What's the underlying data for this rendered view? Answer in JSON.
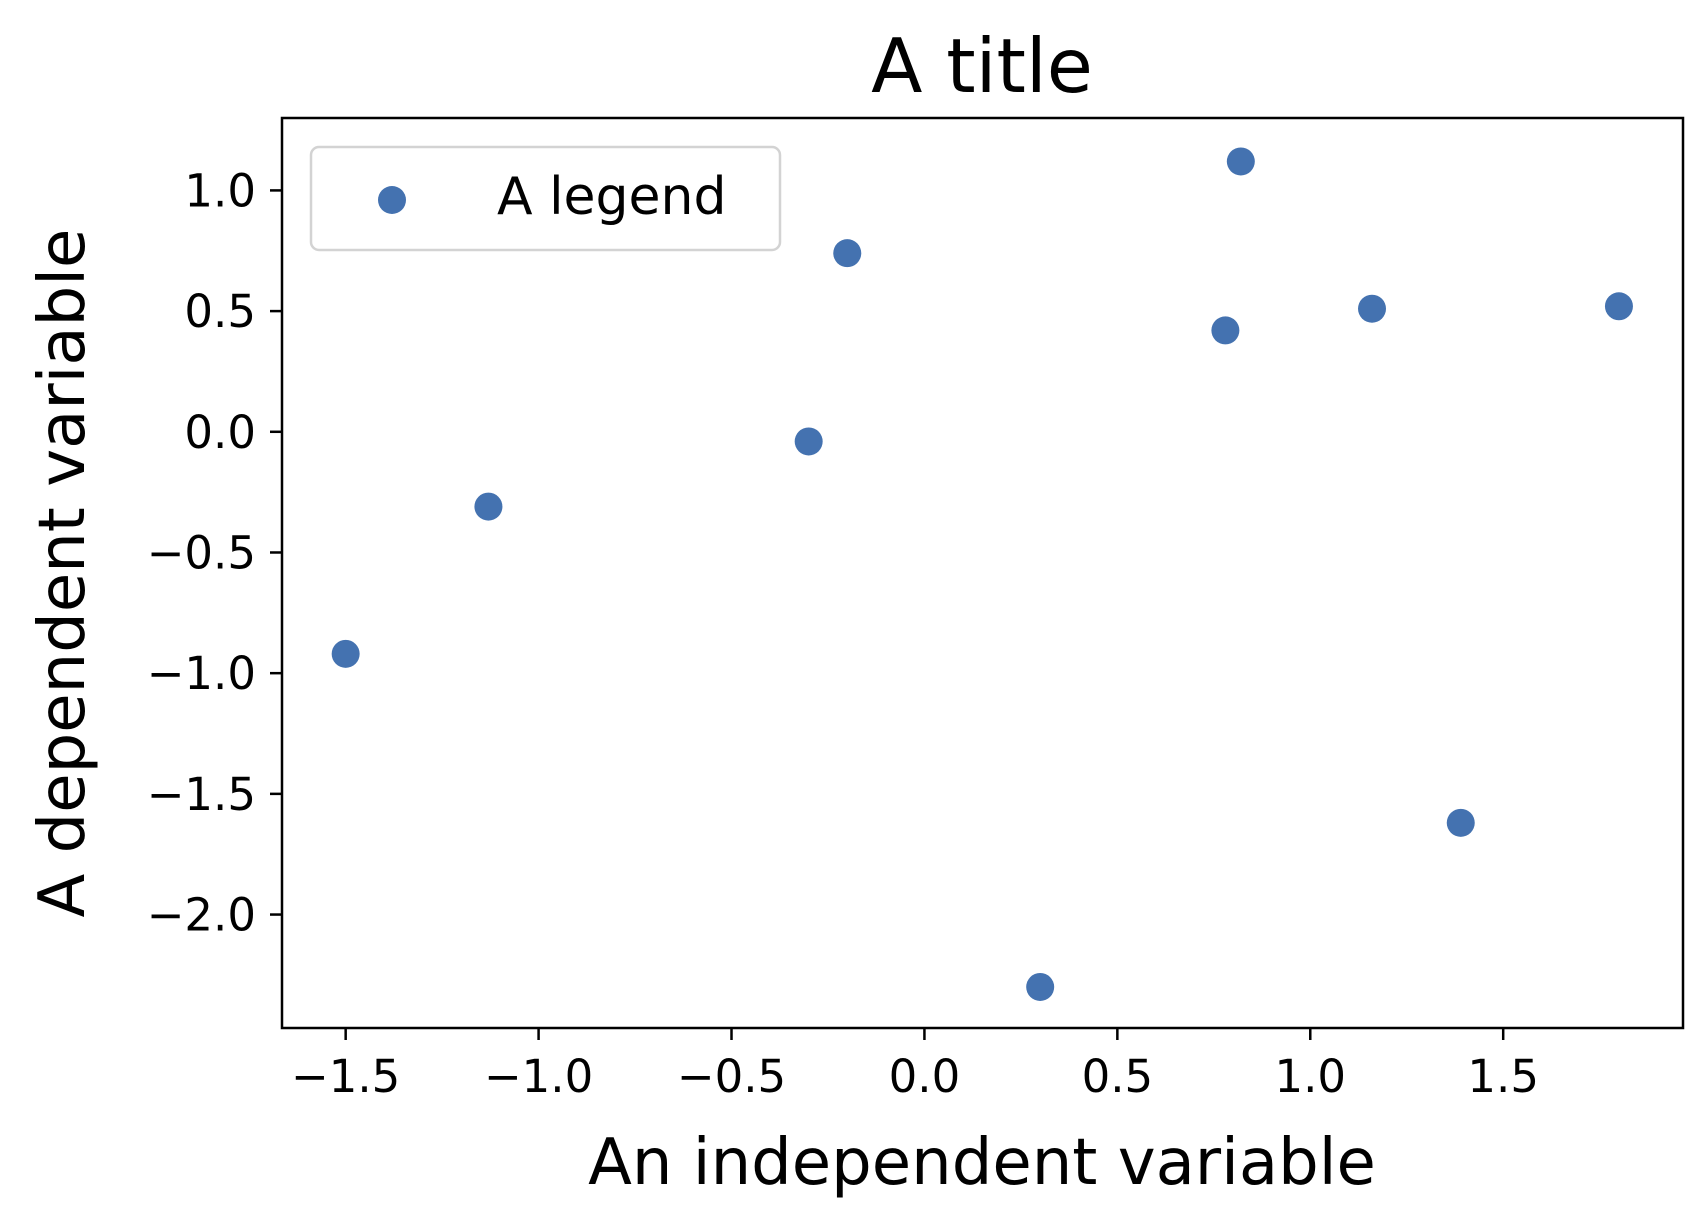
{
  "chart_data": {
    "type": "scatter",
    "title": "A title",
    "xlabel": "An independent variable",
    "ylabel": "A dependent variable",
    "xlim": [
      -1.665,
      1.966
    ],
    "ylim": [
      -2.47,
      1.3
    ],
    "x_ticks": [
      -1.5,
      -1.0,
      -0.5,
      0.0,
      0.5,
      1.0,
      1.5
    ],
    "x_tick_labels": [
      "−1.5",
      "−1.0",
      "−0.5",
      "0.0",
      "0.5",
      "1.0",
      "1.5"
    ],
    "y_ticks": [
      -2.0,
      -1.5,
      -1.0,
      -0.5,
      0.0,
      0.5,
      1.0
    ],
    "y_tick_labels": [
      "−2.0",
      "−1.5",
      "−1.0",
      "−0.5",
      "0.0",
      "0.5",
      "1.0"
    ],
    "grid": false,
    "legend_position": "top-left",
    "series": [
      {
        "name": "A legend",
        "color": "#4472b0",
        "x": [
          -1.5,
          -1.13,
          -0.3,
          -0.2,
          0.3,
          0.78,
          0.82,
          1.16,
          1.39,
          1.8
        ],
        "y": [
          -0.92,
          -0.31,
          -0.04,
          0.74,
          -2.3,
          0.42,
          1.12,
          0.51,
          -1.62,
          0.52
        ]
      }
    ]
  }
}
